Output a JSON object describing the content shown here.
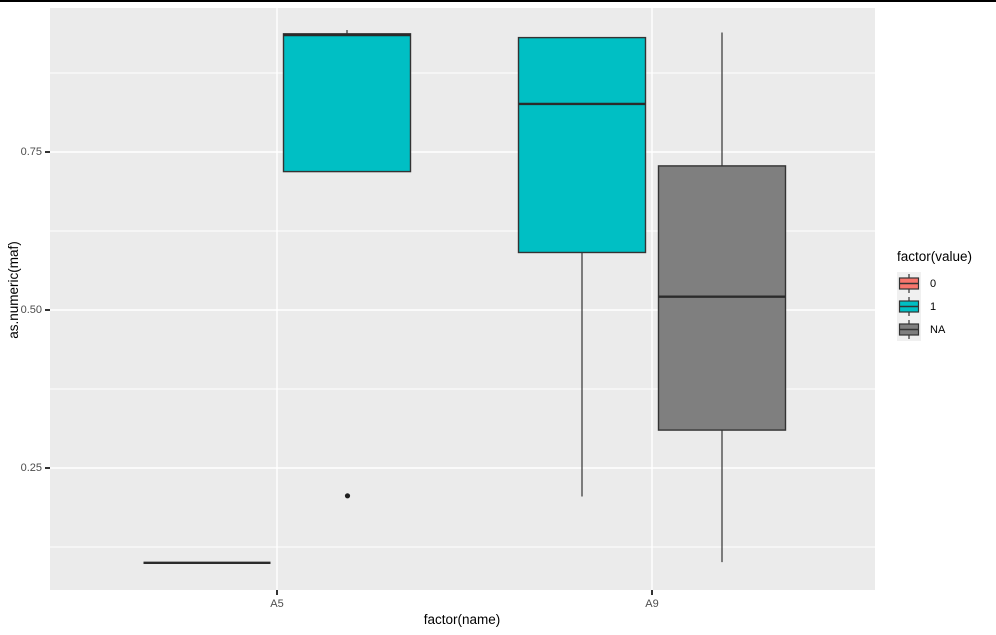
{
  "figure": {
    "background": "#FFFFFF",
    "panel_background": "#EBEBEB",
    "gridline_color": "#FFFFFF",
    "window_top_border_color": "#000000",
    "tick_label_color": "#4D4D4D"
  },
  "chart_data": {
    "type": "boxplot",
    "title": "",
    "xlabel": "factor(name)",
    "ylabel": "as.numeric(maf)",
    "x_categories": [
      "A5",
      "A9"
    ],
    "x_tick_labels": [
      "A5",
      "A9"
    ],
    "y_ticks": [
      0.75,
      0.5,
      0.25
    ],
    "y_tick_labels": [
      "0.75",
      "0.50",
      "0.25"
    ],
    "ylim_approx": [
      0.053,
      0.978
    ],
    "grid": "white major and minor horizontal lines, white vertical lines at categories",
    "box_border_color": "#333333",
    "outlier_color": "#1f1f1f",
    "legend": {
      "title": "factor(value)",
      "position": "right",
      "key_background": "#F0F0F0",
      "entries": [
        {
          "label": "0",
          "color": "#F8766D"
        },
        {
          "label": "1",
          "color": "#00BFC4"
        },
        {
          "label": "NA",
          "color": "#7F7F7F"
        }
      ]
    },
    "boxes": [
      {
        "category": "A5",
        "group": "0",
        "color": "#F8766D",
        "min": 0.1,
        "q1": 0.1,
        "median": 0.1,
        "q3": 0.1,
        "max": 0.1,
        "outliers": []
      },
      {
        "category": "A5",
        "group": "1",
        "color": "#00BFC4",
        "min": 0.719,
        "q1": 0.719,
        "median": 0.935,
        "q3": 0.937,
        "max": 0.943,
        "outliers": [
          0.206
        ]
      },
      {
        "category": "A9",
        "group": "1",
        "color": "#00BFC4",
        "min": 0.205,
        "q1": 0.591,
        "median": 0.826,
        "q3": 0.931,
        "max": 0.931,
        "outliers": []
      },
      {
        "category": "A9",
        "group": "NA",
        "color": "#7F7F7F",
        "min": 0.101,
        "q1": 0.31,
        "median": 0.521,
        "q3": 0.728,
        "max": 0.939,
        "outliers": []
      }
    ]
  }
}
